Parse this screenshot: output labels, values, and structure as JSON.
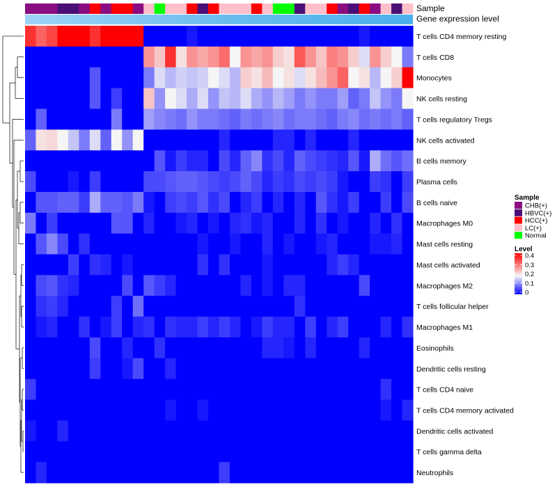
{
  "chart_data": {
    "type": "heatmap",
    "annotation_rows": [
      "Sample",
      "Gene expression level"
    ],
    "rows": [
      "T cells CD4 memory resting",
      "T cells CD8",
      "Monocytes",
      "NK cells resting",
      "T cells regulatory  Tregs",
      "NK cells activated",
      "B cells memory",
      "Plasma cells",
      "B cells naive",
      "Macrophages M0",
      "Mast cells resting",
      "Mast cells activated",
      "Macrophages M2",
      "T cells follicular helper",
      "Macrophages M1",
      "Eosinophils",
      "Dendritic cells resting",
      "T cells CD4 naive",
      "T cells CD4 memory activated",
      "Dendritic cells activated",
      "T cells gamma delta",
      "Neutrophils"
    ],
    "sample_groups": [
      "CHB(+)",
      "CHB(+)",
      "CHB(+)",
      "HBVC(+)",
      "HBVC(+)",
      "CHB(+)",
      "HCC(+)",
      "CHB(+)",
      "HCC(+)",
      "HCC(+)",
      "CHB(+)",
      "LC(+)",
      "Normal",
      "LC(+)",
      "LC(+)",
      "HCC(+)",
      "HBVC(+)",
      "HCC(+)",
      "LC(+)",
      "LC(+)",
      "LC(+)",
      "HCC(+)",
      "LC(+)",
      "Normal",
      "Normal",
      "HBVC(+)",
      "LC(+)",
      "LC(+)",
      "HCC(+)",
      "CHB(+)",
      "HBVC(+)",
      "HCC(+)",
      "CHB(+)",
      "LC(+)",
      "HBVC(+)",
      "LC(+)"
    ],
    "expression_gradient": [
      "#9fd4f6",
      "#6cbdef",
      "#4cb0ec"
    ],
    "values": [
      [
        0.4,
        0.35,
        0.38,
        0.45,
        0.45,
        0.45,
        0.4,
        0.45,
        0.45,
        0.45,
        0.45,
        0.0,
        0.0,
        0.0,
        0.0,
        0.02,
        0.0,
        0.0,
        0.0,
        0.0,
        0.0,
        0.0,
        0.0,
        0.0,
        0.0,
        0.0,
        0.0,
        0.0,
        0.0,
        0.0,
        0.0,
        0.02,
        0.0,
        0.0,
        0.0,
        0.0
      ],
      [
        0.0,
        0.0,
        0.0,
        0.0,
        0.0,
        0.0,
        0.0,
        0.0,
        0.0,
        0.0,
        0.0,
        0.3,
        0.25,
        0.4,
        0.22,
        0.3,
        0.28,
        0.3,
        0.34,
        0.2,
        0.3,
        0.28,
        0.3,
        0.24,
        0.22,
        0.36,
        0.3,
        0.25,
        0.32,
        0.3,
        0.24,
        0.18,
        0.3,
        0.24,
        0.2,
        0.1
      ],
      [
        0.0,
        0.0,
        0.0,
        0.0,
        0.0,
        0.0,
        0.07,
        0.0,
        0.0,
        0.0,
        0.0,
        0.1,
        0.18,
        0.15,
        0.17,
        0.16,
        0.17,
        0.2,
        0.18,
        0.15,
        0.24,
        0.22,
        0.26,
        0.2,
        0.22,
        0.18,
        0.22,
        0.26,
        0.3,
        0.35,
        0.2,
        0.22,
        0.15,
        0.2,
        0.24,
        0.45
      ],
      [
        0.0,
        0.0,
        0.0,
        0.0,
        0.0,
        0.0,
        0.07,
        0.0,
        0.05,
        0.0,
        0.0,
        0.25,
        0.12,
        0.2,
        0.18,
        0.14,
        0.18,
        0.12,
        0.16,
        0.15,
        0.18,
        0.14,
        0.12,
        0.15,
        0.13,
        0.1,
        0.12,
        0.1,
        0.1,
        0.13,
        0.08,
        0.1,
        0.16,
        0.12,
        0.1,
        0.2
      ],
      [
        0.0,
        0.08,
        0.0,
        0.0,
        0.0,
        0.0,
        0.0,
        0.0,
        0.1,
        0.0,
        0.0,
        0.13,
        0.11,
        0.1,
        0.09,
        0.12,
        0.1,
        0.1,
        0.09,
        0.08,
        0.1,
        0.09,
        0.1,
        0.11,
        0.09,
        0.1,
        0.1,
        0.09,
        0.08,
        0.1,
        0.11,
        0.09,
        0.1,
        0.09,
        0.1,
        0.08
      ],
      [
        0.08,
        0.22,
        0.23,
        0.2,
        0.16,
        0.1,
        0.18,
        0.08,
        0.2,
        0.12,
        0.2,
        0.0,
        0.0,
        0.0,
        0.0,
        0.0,
        0.0,
        0.0,
        0.03,
        0.0,
        0.0,
        0.0,
        0.0,
        0.03,
        0.03,
        0.0,
        0.03,
        0.0,
        0.0,
        0.0,
        0.03,
        0.0,
        0.0,
        0.0,
        0.0,
        0.0
      ],
      [
        0.0,
        0.0,
        0.0,
        0.0,
        0.0,
        0.0,
        0.0,
        0.0,
        0.0,
        0.0,
        0.0,
        0.0,
        0.07,
        0.02,
        0.05,
        0.03,
        0.03,
        0.0,
        0.06,
        0.03,
        0.08,
        0.11,
        0.04,
        0.06,
        0.03,
        0.08,
        0.06,
        0.05,
        0.04,
        0.03,
        0.07,
        0.02,
        0.14,
        0.09,
        0.07,
        0.09
      ],
      [
        0.06,
        0.0,
        0.0,
        0.0,
        0.02,
        0.0,
        0.05,
        0.0,
        0.0,
        0.0,
        0.0,
        0.06,
        0.06,
        0.07,
        0.08,
        0.08,
        0.07,
        0.06,
        0.05,
        0.06,
        0.08,
        0.06,
        0.03,
        0.05,
        0.04,
        0.06,
        0.05,
        0.06,
        0.05,
        0.02,
        0.0,
        0.0,
        0.05,
        0.04,
        0.0,
        0.05
      ],
      [
        0.0,
        0.07,
        0.07,
        0.08,
        0.08,
        0.05,
        0.14,
        0.08,
        0.08,
        0.07,
        0.1,
        0.02,
        0.0,
        0.05,
        0.06,
        0.05,
        0.07,
        0.04,
        0.06,
        0.0,
        0.03,
        0.05,
        0.0,
        0.03,
        0.0,
        0.03,
        0.0,
        0.07,
        0.04,
        0.02,
        0.05,
        0.0,
        0.0,
        0.05,
        0.0,
        0.06
      ],
      [
        0.1,
        0.0,
        0.05,
        0.0,
        0.0,
        0.0,
        0.0,
        0.0,
        0.07,
        0.07,
        0.0,
        0.03,
        0.0,
        0.0,
        0.02,
        0.03,
        0.0,
        0.02,
        0.0,
        0.03,
        0.04,
        0.02,
        0.03,
        0.0,
        0.0,
        0.03,
        0.0,
        0.04,
        0.0,
        0.02,
        0.0,
        0.0,
        0.03,
        0.0,
        0.04,
        0.0
      ],
      [
        0.0,
        0.07,
        0.11,
        0.06,
        0.0,
        0.04,
        0.0,
        0.0,
        0.0,
        0.0,
        0.0,
        0.0,
        0.0,
        0.0,
        0.0,
        0.0,
        0.02,
        0.0,
        0.0,
        0.02,
        0.0,
        0.0,
        0.03,
        0.0,
        0.02,
        0.0,
        0.0,
        0.02,
        0.03,
        0.0,
        0.0,
        0.0,
        0.02,
        0.02,
        0.03,
        0.0
      ],
      [
        0.0,
        0.0,
        0.0,
        0.0,
        0.05,
        0.0,
        0.04,
        0.03,
        0.0,
        0.02,
        0.0,
        0.0,
        0.0,
        0.0,
        0.0,
        0.0,
        0.04,
        0.0,
        0.04,
        0.0,
        0.0,
        0.0,
        0.02,
        0.0,
        0.0,
        0.0,
        0.0,
        0.0,
        0.03,
        0.05,
        0.03,
        0.0,
        0.0,
        0.0,
        0.0,
        0.0
      ],
      [
        0.0,
        0.06,
        0.07,
        0.04,
        0.03,
        0.0,
        0.0,
        0.0,
        0.0,
        0.06,
        0.0,
        0.07,
        0.05,
        0.03,
        0.0,
        0.0,
        0.0,
        0.0,
        0.0,
        0.0,
        0.03,
        0.0,
        0.02,
        0.0,
        0.03,
        0.03,
        0.0,
        0.0,
        0.0,
        0.0,
        0.0,
        0.06,
        0.0,
        0.0,
        0.0,
        0.0
      ],
      [
        0.0,
        0.04,
        0.05,
        0.03,
        0.0,
        0.0,
        0.0,
        0.0,
        0.05,
        0.0,
        0.09,
        0.0,
        0.0,
        0.0,
        0.0,
        0.0,
        0.0,
        0.0,
        0.0,
        0.0,
        0.0,
        0.0,
        0.0,
        0.0,
        0.0,
        0.04,
        0.0,
        0.0,
        0.0,
        0.0,
        0.0,
        0.0,
        0.0,
        0.0,
        0.0,
        0.0
      ],
      [
        0.0,
        0.02,
        0.03,
        0.0,
        0.0,
        0.04,
        0.0,
        0.02,
        0.05,
        0.0,
        0.03,
        0.04,
        0.0,
        0.04,
        0.03,
        0.03,
        0.05,
        0.03,
        0.05,
        0.03,
        0.0,
        0.02,
        0.05,
        0.03,
        0.03,
        0.0,
        0.05,
        0.0,
        0.03,
        0.05,
        0.0,
        0.0,
        0.0,
        0.03,
        0.0,
        0.04
      ],
      [
        0.0,
        0.0,
        0.0,
        0.0,
        0.0,
        0.0,
        0.06,
        0.0,
        0.0,
        0.03,
        0.0,
        0.0,
        0.04,
        0.0,
        0.0,
        0.0,
        0.0,
        0.0,
        0.0,
        0.0,
        0.0,
        0.0,
        0.03,
        0.03,
        0.02,
        0.0,
        0.03,
        0.0,
        0.0,
        0.0,
        0.0,
        0.03,
        0.0,
        0.0,
        0.0,
        0.0
      ],
      [
        0.0,
        0.0,
        0.0,
        0.0,
        0.0,
        0.0,
        0.05,
        0.0,
        0.0,
        0.02,
        0.06,
        0.0,
        0.0,
        0.03,
        0.0,
        0.0,
        0.0,
        0.0,
        0.0,
        0.0,
        0.0,
        0.0,
        0.0,
        0.0,
        0.0,
        0.0,
        0.0,
        0.0,
        0.0,
        0.0,
        0.0,
        0.0,
        0.0,
        0.0,
        0.0,
        0.0
      ],
      [
        0.05,
        0.0,
        0.0,
        0.0,
        0.0,
        0.0,
        0.0,
        0.0,
        0.0,
        0.0,
        0.0,
        0.0,
        0.0,
        0.0,
        0.0,
        0.0,
        0.0,
        0.0,
        0.0,
        0.0,
        0.0,
        0.0,
        0.0,
        0.0,
        0.0,
        0.0,
        0.0,
        0.0,
        0.0,
        0.0,
        0.0,
        0.0,
        0.0,
        0.04,
        0.0,
        0.0
      ],
      [
        0.0,
        0.0,
        0.0,
        0.0,
        0.0,
        0.0,
        0.0,
        0.0,
        0.0,
        0.0,
        0.0,
        0.0,
        0.0,
        0.02,
        0.0,
        0.0,
        0.02,
        0.0,
        0.0,
        0.0,
        0.0,
        0.0,
        0.0,
        0.0,
        0.0,
        0.0,
        0.0,
        0.0,
        0.0,
        0.0,
        0.0,
        0.0,
        0.0,
        0.02,
        0.0,
        0.03
      ],
      [
        0.02,
        0.0,
        0.0,
        0.03,
        0.0,
        0.0,
        0.0,
        0.0,
        0.0,
        0.0,
        0.0,
        0.0,
        0.0,
        0.0,
        0.0,
        0.0,
        0.0,
        0.0,
        0.0,
        0.0,
        0.0,
        0.0,
        0.0,
        0.0,
        0.0,
        0.0,
        0.0,
        0.0,
        0.0,
        0.0,
        0.0,
        0.0,
        0.0,
        0.0,
        0.0,
        0.0
      ],
      [
        0.0,
        0.0,
        0.0,
        0.0,
        0.0,
        0.0,
        0.0,
        0.0,
        0.0,
        0.0,
        0.0,
        0.0,
        0.0,
        0.0,
        0.0,
        0.0,
        0.0,
        0.0,
        0.0,
        0.0,
        0.0,
        0.0,
        0.0,
        0.0,
        0.0,
        0.0,
        0.0,
        0.0,
        0.0,
        0.0,
        0.0,
        0.0,
        0.0,
        0.0,
        0.0,
        0.0
      ],
      [
        0.0,
        0.03,
        0.0,
        0.0,
        0.0,
        0.0,
        0.0,
        0.0,
        0.0,
        0.0,
        0.0,
        0.0,
        0.0,
        0.0,
        0.0,
        0.0,
        0.0,
        0.0,
        0.05,
        0.0,
        0.0,
        0.0,
        0.0,
        0.0,
        0.0,
        0.0,
        0.0,
        0.0,
        0.0,
        0.0,
        0.0,
        0.0,
        0.0,
        0.0,
        0.0,
        0.0
      ]
    ],
    "color_scale": {
      "min": 0,
      "max": 0.45,
      "stops": [
        {
          "value": 0,
          "color": "#0000ff"
        },
        {
          "value": 0.2,
          "color": "#f5f5f5"
        },
        {
          "value": 0.45,
          "color": "#ff0000"
        }
      ]
    },
    "legend": {
      "sample": {
        "title": "Sample",
        "entries": [
          {
            "label": "CHB(+)",
            "color": "#8b0d82"
          },
          {
            "label": "HBVC(+)",
            "color": "#4b0f78"
          },
          {
            "label": "HCC(+)",
            "color": "#ff0000"
          },
          {
            "label": "LC(+)",
            "color": "#ffc0cb"
          },
          {
            "label": "Normal",
            "color": "#00ff00"
          }
        ]
      },
      "level": {
        "title": "Level",
        "ticks": [
          0.4,
          0.3,
          0.2,
          0.1,
          0
        ]
      }
    }
  }
}
